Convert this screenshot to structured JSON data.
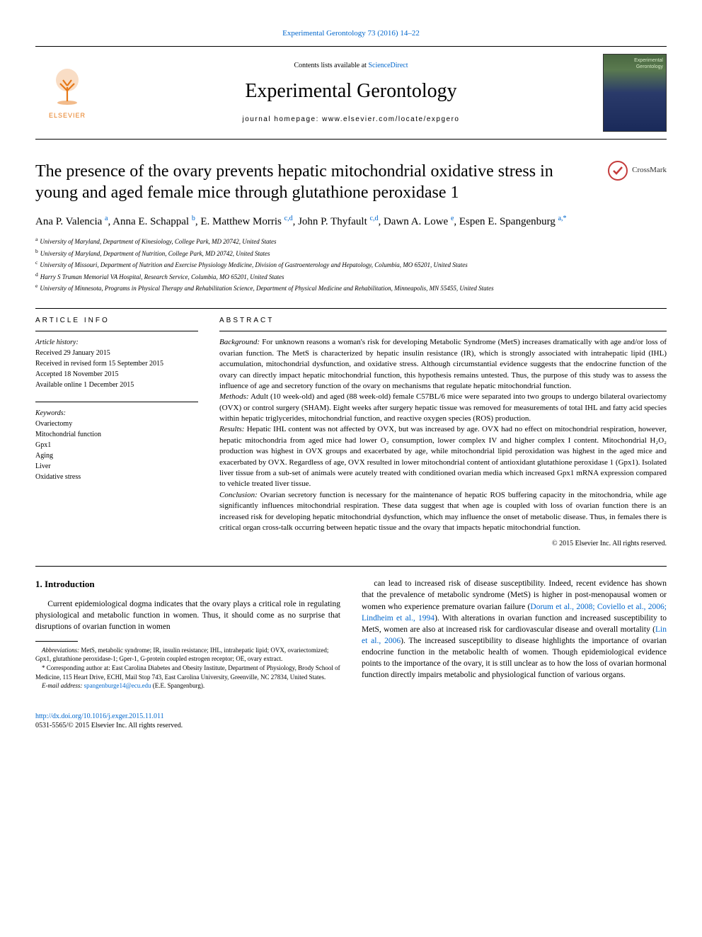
{
  "journal_ref": "Experimental Gerontology 73 (2016) 14–22",
  "contents_prefix": "Contents lists available at ",
  "contents_link": "ScienceDirect",
  "journal_name": "Experimental Gerontology",
  "homepage_line": "journal homepage: www.elsevier.com/locate/expgero",
  "publisher_name": "ELSEVIER",
  "cover_title": "Experimental Gerontology",
  "crossmark_label": "CrossMark",
  "title": "The presence of the ovary prevents hepatic mitochondrial oxidative stress in young and aged female mice through glutathione peroxidase 1",
  "authors_html": "Ana P. Valencia <sup>a</sup>, Anna E. Schappal <sup>b</sup>, E. Matthew Morris <sup>c,d</sup>, John P. Thyfault <sup>c,d</sup>, Dawn A. Lowe <sup>e</sup>, Espen E. Spangenburg <sup>a,*</sup>",
  "affiliations": [
    {
      "key": "a",
      "text": "University of Maryland, Department of Kinesiology, College Park, MD 20742, United States"
    },
    {
      "key": "b",
      "text": "University of Maryland, Department of Nutrition, College Park, MD 20742, United States"
    },
    {
      "key": "c",
      "text": "University of Missouri, Department of Nutrition and Exercise Physiology Medicine, Division of Gastroenterology and Hepatology, Columbia, MO 65201, United States"
    },
    {
      "key": "d",
      "text": "Harry S Truman Memorial VA Hospital, Research Service, Columbia, MO 65201, United States"
    },
    {
      "key": "e",
      "text": "University of Minnesota, Programs in Physical Therapy and Rehabilitation Science, Department of Physical Medicine and Rehabilitation, Minneapolis, MN 55455, United States"
    }
  ],
  "article_info_heading": "article info",
  "history_label": "Article history:",
  "history": [
    "Received 29 January 2015",
    "Received in revised form 15 September 2015",
    "Accepted 18 November 2015",
    "Available online 1 December 2015"
  ],
  "keywords_label": "Keywords:",
  "keywords": [
    "Ovariectomy",
    "Mitochondrial function",
    "Gpx1",
    "Aging",
    "Liver",
    "Oxidative stress"
  ],
  "abstract_heading": "abstract",
  "abstract": {
    "background_label": "Background:",
    "background": "For unknown reasons a woman's risk for developing Metabolic Syndrome (MetS) increases dramatically with age and/or loss of ovarian function. The MetS is characterized by hepatic insulin resistance (IR), which is strongly associated with intrahepatic lipid (IHL) accumulation, mitochondrial dysfunction, and oxidative stress. Although circumstantial evidence suggests that the endocrine function of the ovary can directly impact hepatic mitochondrial function, this hypothesis remains untested. Thus, the purpose of this study was to assess the influence of age and secretory function of the ovary on mechanisms that regulate hepatic mitochondrial function.",
    "methods_label": "Methods:",
    "methods": "Adult (10 week-old) and aged (88 week-old) female C57BL/6 mice were separated into two groups to undergo bilateral ovariectomy (OVX) or control surgery (SHAM). Eight weeks after surgery hepatic tissue was removed for measurements of total IHL and fatty acid species within hepatic triglycerides, mitochondrial function, and reactive oxygen species (ROS) production.",
    "results_label": "Results:",
    "results": "Hepatic IHL content was not affected by OVX, but was increased by age. OVX had no effect on mitochondrial respiration, however, hepatic mitochondria from aged mice had lower O₂ consumption, lower complex IV and higher complex I content. Mitochondrial H₂O₂ production was highest in OVX groups and exacerbated by age, while mitochondrial lipid peroxidation was highest in the aged mice and exacerbated by OVX. Regardless of age, OVX resulted in lower mitochondrial content of antioxidant glutathione peroxidase 1 (Gpx1). Isolated liver tissue from a sub-set of animals were acutely treated with conditioned ovarian media which increased Gpx1 mRNA expression compared to vehicle treated liver tissue.",
    "conclusion_label": "Conclusion:",
    "conclusion": "Ovarian secretory function is necessary for the maintenance of hepatic ROS buffering capacity in the mitochondria, while age significantly influences mitochondrial respiration. These data suggest that when age is coupled with loss of ovarian function there is an increased risk for developing hepatic mitochondrial dysfunction, which may influence the onset of metabolic disease. Thus, in females there is critical organ cross-talk occurring between hepatic tissue and the ovary that impacts hepatic mitochondrial function."
  },
  "copyright": "© 2015 Elsevier Inc. All rights reserved.",
  "intro_heading": "1. Introduction",
  "intro_col1": "Current epidemiological dogma indicates that the ovary plays a critical role in regulating physiological and metabolic function in women. Thus, it should come as no surprise that disruptions of ovarian function in women",
  "intro_col2_part1": "can lead to increased risk of disease susceptibility. Indeed, recent evidence has shown that the prevalence of metabolic syndrome (MetS) is higher in post-menopausal women or women who experience premature ovarian failure (",
  "intro_col2_link1": "Dorum et al., 2008; Coviello et al., 2006; Lindheim et al., 1994",
  "intro_col2_part2": "). With alterations in ovarian function and increased susceptibility to MetS, women are also at increased risk for cardiovascular disease and overall mortality (",
  "intro_col2_link2": "Lin et al., 2006",
  "intro_col2_part3": "). The increased susceptibility to disease highlights the importance of ovarian endocrine function in the metabolic health of women. Though epidemiological evidence points to the importance of the ovary, it is still unclear as to how the loss of ovarian hormonal function directly impairs metabolic and physiological function of various organs.",
  "abbrev_label": "Abbreviations:",
  "abbrev_text": "MetS, metabolic syndrome; IR, insulin resistance; IHL, intrahepatic lipid; OVX, ovariectomized; Gpx1, glutathione peroxidase-1; Gper-1, G-protein coupled estrogen receptor; OE, ovary extract.",
  "corresp_marker": "*",
  "corresp_text": "Corresponding author at: East Carolina Diabetes and Obesity Institute, Department of Physiology, Brody School of Medicine, 115 Heart Drive, ECHI, Mail Stop 743, East Carolina University, Greenville, NC 27834, United States.",
  "email_label": "E-mail address:",
  "email": "spangenburge14@ecu.edu",
  "email_author": "(E.E. Spangenburg).",
  "doi": "http://dx.doi.org/10.1016/j.exger.2015.11.011",
  "issn_line": "0531-5565/© 2015 Elsevier Inc. All rights reserved.",
  "colors": {
    "link": "#0066cc",
    "elsevier_orange": "#e67817",
    "crossmark_red": "#c43b3b"
  }
}
